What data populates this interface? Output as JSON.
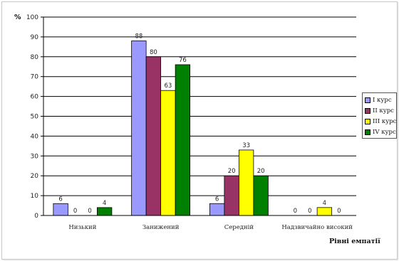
{
  "chart_data": {
    "type": "bar",
    "unit_label": "%",
    "xlabel": "Рівні емпатії",
    "ylim": [
      0,
      100
    ],
    "yticks": [
      0,
      10,
      20,
      30,
      40,
      50,
      60,
      70,
      80,
      90,
      100
    ],
    "grid": true,
    "legend_position": "right",
    "categories": [
      "Низький",
      "Занижений",
      "Середній",
      "Надзвичайно високий"
    ],
    "series": [
      {
        "name": "I курс",
        "color": "#9999ff",
        "values": [
          6,
          88,
          6,
          0
        ]
      },
      {
        "name": "II курс",
        "color": "#993366",
        "values": [
          0,
          80,
          20,
          0
        ]
      },
      {
        "name": "III курс",
        "color": "#ffff00",
        "values": [
          0,
          63,
          33,
          4
        ]
      },
      {
        "name": "IV курс",
        "color": "#008000",
        "values": [
          4,
          76,
          20,
          0
        ]
      }
    ]
  }
}
